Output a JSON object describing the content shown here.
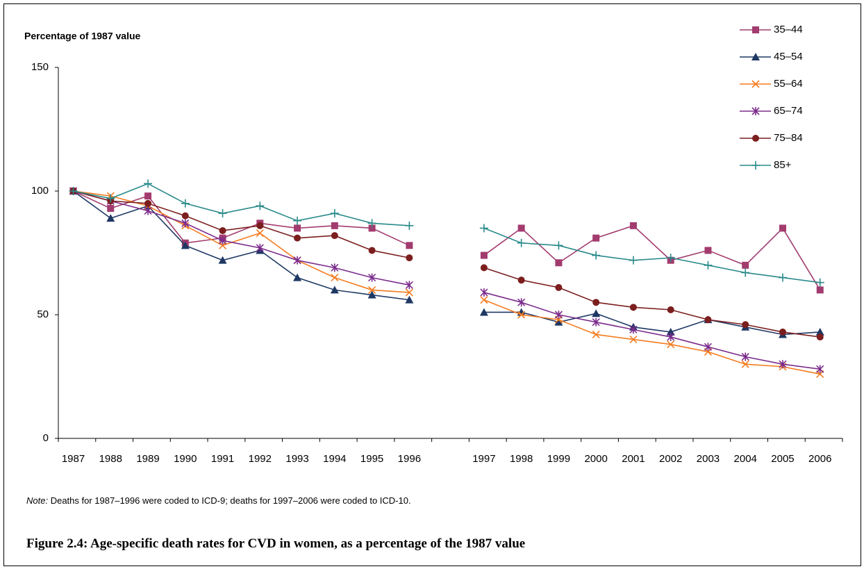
{
  "chart_data": {
    "type": "line",
    "y_axis_label": "Percentage of 1987 value",
    "categories": [
      "1987",
      "1988",
      "1989",
      "1990",
      "1991",
      "1992",
      "1993",
      "1994",
      "1995",
      "1996",
      null,
      "1997",
      "1998",
      "1999",
      "2000",
      "2001",
      "2002",
      "2003",
      "2004",
      "2005",
      "2006"
    ],
    "series": [
      {
        "name": "35–44",
        "color": "#a23b6e",
        "marker": "square",
        "values": [
          100,
          93,
          98,
          79,
          81,
          87,
          85,
          86,
          85,
          78,
          null,
          74,
          85,
          71,
          81,
          86,
          72,
          76,
          70,
          85,
          60
        ]
      },
      {
        "name": "45–54",
        "color": "#1f3864",
        "marker": "triangle",
        "values": [
          100,
          89,
          94,
          78,
          72,
          76,
          65,
          60,
          58,
          56,
          null,
          51,
          51,
          47,
          50.5,
          45,
          43,
          48,
          45,
          42,
          43
        ]
      },
      {
        "name": "55–64",
        "color": "#f47c20",
        "marker": "x",
        "values": [
          100,
          98,
          94,
          86,
          78,
          83,
          72,
          65,
          60,
          59,
          null,
          56,
          50,
          48,
          42,
          40,
          38,
          35,
          30,
          29,
          26
        ]
      },
      {
        "name": "65–74",
        "color": "#7b2c8c",
        "marker": "star",
        "values": [
          100,
          96,
          92,
          87,
          80,
          77,
          72,
          69,
          65,
          62,
          null,
          59,
          55,
          50,
          47,
          44,
          41,
          37,
          33,
          30,
          28
        ]
      },
      {
        "name": "75–84",
        "color": "#7b1e1e",
        "marker": "circle",
        "values": [
          100,
          96,
          95,
          90,
          84,
          86,
          81,
          82,
          76,
          73,
          null,
          69,
          64,
          61,
          55,
          53,
          52,
          48,
          46,
          43,
          41
        ]
      },
      {
        "name": "85+",
        "color": "#2a8a8a",
        "marker": "plus",
        "values": [
          100,
          97,
          103,
          95,
          91,
          94,
          88,
          91,
          87,
          86,
          null,
          85,
          79,
          78,
          74,
          72,
          73,
          70,
          67,
          65,
          63
        ]
      }
    ],
    "ylim": [
      0,
      150
    ],
    "yticks": [
      0,
      50,
      100,
      150
    ],
    "grid": false,
    "legend": "top-right",
    "note": {
      "label": "Note:",
      "text": "Deaths for 1987–1996 were coded to ICD-9; deaths for 1997–2006 were coded to ICD-10."
    },
    "caption": "Figure 2.4: Age-specific death rates for CVD in women, as a percentage of the 1987 value"
  }
}
